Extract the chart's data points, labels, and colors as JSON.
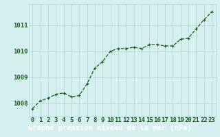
{
  "x": [
    0,
    1,
    2,
    3,
    4,
    5,
    6,
    7,
    8,
    9,
    10,
    11,
    12,
    13,
    14,
    15,
    16,
    17,
    18,
    19,
    20,
    21,
    22,
    23
  ],
  "y": [
    1007.8,
    1008.1,
    1008.2,
    1008.35,
    1008.4,
    1008.25,
    1008.3,
    1008.75,
    1009.35,
    1009.6,
    1010.0,
    1010.1,
    1010.1,
    1010.15,
    1010.1,
    1010.25,
    1010.25,
    1010.2,
    1010.2,
    1010.45,
    1010.5,
    1010.85,
    1011.2,
    1011.5
  ],
  "line_color": "#1a5c1a",
  "marker_color": "#1a5c1a",
  "bg_color": "#d6f0f0",
  "grid_color": "#b0d4d4",
  "xlabel": "Graphe pression niveau de la mer (hPa)",
  "ylabel_ticks": [
    1008,
    1009,
    1010,
    1011
  ],
  "xlim": [
    -0.5,
    23.5
  ],
  "ylim": [
    1007.5,
    1011.8
  ],
  "bottom_bar_color": "#2d6e2d",
  "tick_label_color": "#1a5c1a",
  "xlabel_fontsize": 7.5,
  "tick_fontsize": 6.5,
  "figwidth": 3.2,
  "figheight": 2.0,
  "dpi": 100
}
